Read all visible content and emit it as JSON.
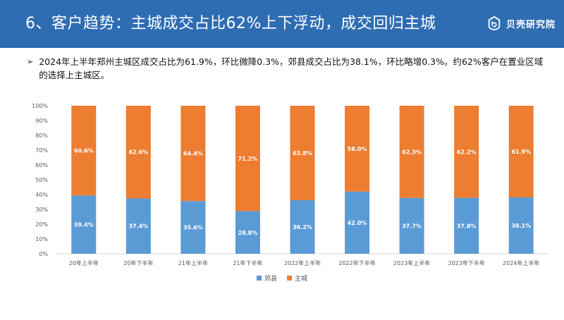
{
  "header": {
    "title": "6、客户趋势：主城成交占比62%上下浮动，成交回归主城",
    "brand_name": "贝壳研究院",
    "logo_icon": "beike-logo-icon",
    "background": "#2f6db3"
  },
  "summary": {
    "bullet_icon": "arrow-bullet-icon",
    "text": "2024年上半年郑州主城区成交占比为61.9%，环比微降0.3%，郊县成交占比为38.1%，环比略增0.3%。约62%客户在置业区域的选择上主城区。"
  },
  "chart_data": {
    "type": "bar",
    "stacked": true,
    "title": "",
    "xlabel": "",
    "ylabel": "",
    "ylim": [
      0,
      100
    ],
    "y_ticks": [
      "0%",
      "10%",
      "20%",
      "30%",
      "40%",
      "50%",
      "60%",
      "70%",
      "80%",
      "90%",
      "100%"
    ],
    "categories": [
      "20年上半年",
      "20年下半年",
      "21年上半年",
      "21年下半年",
      "2022年上半年",
      "2022年下半年",
      "2023年上半年",
      "2023年下半年",
      "2024年上半年"
    ],
    "series": [
      {
        "name": "郊县",
        "color": "#5b9bd5",
        "values": [
          39.4,
          37.4,
          35.6,
          28.8,
          36.2,
          42.0,
          37.7,
          37.8,
          38.1
        ],
        "labels": [
          "39.4%",
          "37.4%",
          "35.6%",
          "28.8%",
          "36.2%",
          "42.0%",
          "37.7%",
          "37.8%",
          "38.1%"
        ]
      },
      {
        "name": "主城",
        "color": "#ed7d31",
        "values": [
          60.6,
          62.6,
          64.4,
          71.2,
          63.8,
          58.0,
          62.3,
          62.2,
          61.9
        ],
        "labels": [
          "60.6%",
          "62.6%",
          "64.4%",
          "71.2%",
          "63.8%",
          "58.0%",
          "62.3%",
          "62.2%",
          "61.9%"
        ]
      }
    ],
    "legend": [
      "郊县",
      "主城"
    ],
    "legend_position": "bottom",
    "grid": false
  }
}
